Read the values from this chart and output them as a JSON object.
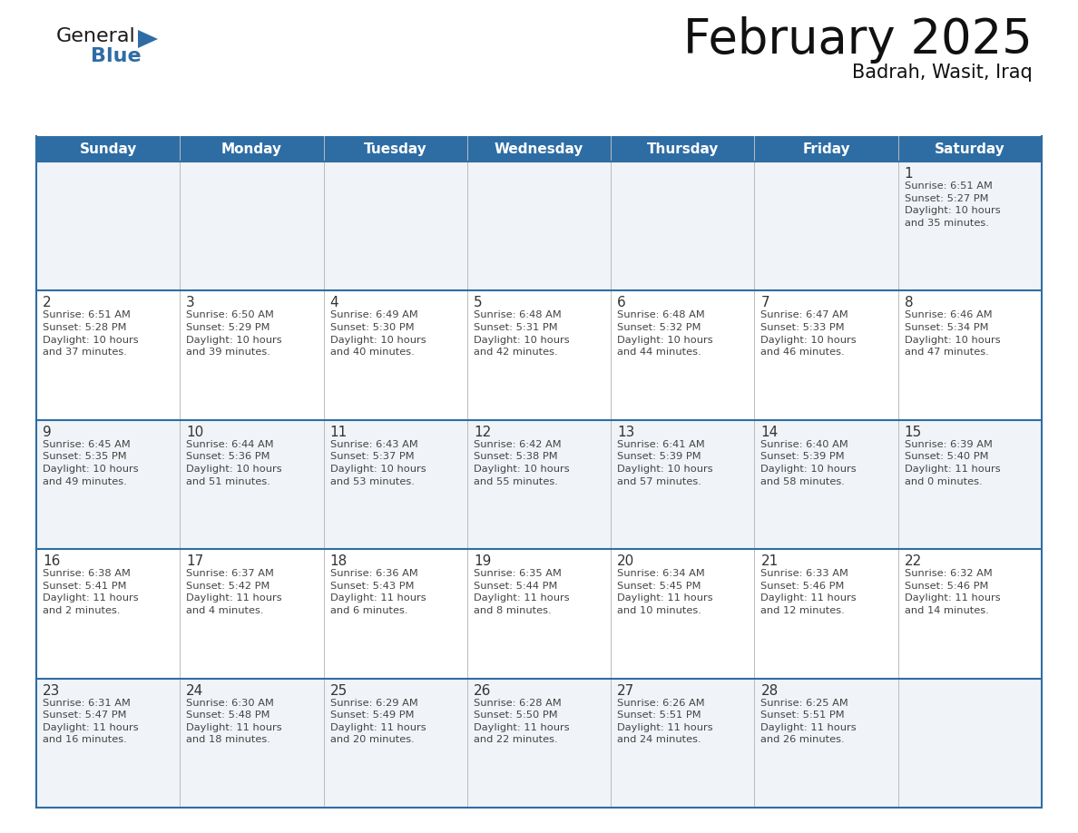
{
  "title": "February 2025",
  "subtitle": "Badrah, Wasit, Iraq",
  "header_bg": "#2E6DA4",
  "header_text_color": "#FFFFFF",
  "cell_bg_odd": "#FFFFFF",
  "cell_bg_even": "#F0F4F8",
  "border_color": "#2E6DA4",
  "grid_line_color": "#AAAAAA",
  "text_color": "#444444",
  "day_number_color": "#333333",
  "days_of_week": [
    "Sunday",
    "Monday",
    "Tuesday",
    "Wednesday",
    "Thursday",
    "Friday",
    "Saturday"
  ],
  "weeks": [
    [
      {
        "day": null,
        "info": null
      },
      {
        "day": null,
        "info": null
      },
      {
        "day": null,
        "info": null
      },
      {
        "day": null,
        "info": null
      },
      {
        "day": null,
        "info": null
      },
      {
        "day": null,
        "info": null
      },
      {
        "day": 1,
        "info": "Sunrise: 6:51 AM\nSunset: 5:27 PM\nDaylight: 10 hours\nand 35 minutes."
      }
    ],
    [
      {
        "day": 2,
        "info": "Sunrise: 6:51 AM\nSunset: 5:28 PM\nDaylight: 10 hours\nand 37 minutes."
      },
      {
        "day": 3,
        "info": "Sunrise: 6:50 AM\nSunset: 5:29 PM\nDaylight: 10 hours\nand 39 minutes."
      },
      {
        "day": 4,
        "info": "Sunrise: 6:49 AM\nSunset: 5:30 PM\nDaylight: 10 hours\nand 40 minutes."
      },
      {
        "day": 5,
        "info": "Sunrise: 6:48 AM\nSunset: 5:31 PM\nDaylight: 10 hours\nand 42 minutes."
      },
      {
        "day": 6,
        "info": "Sunrise: 6:48 AM\nSunset: 5:32 PM\nDaylight: 10 hours\nand 44 minutes."
      },
      {
        "day": 7,
        "info": "Sunrise: 6:47 AM\nSunset: 5:33 PM\nDaylight: 10 hours\nand 46 minutes."
      },
      {
        "day": 8,
        "info": "Sunrise: 6:46 AM\nSunset: 5:34 PM\nDaylight: 10 hours\nand 47 minutes."
      }
    ],
    [
      {
        "day": 9,
        "info": "Sunrise: 6:45 AM\nSunset: 5:35 PM\nDaylight: 10 hours\nand 49 minutes."
      },
      {
        "day": 10,
        "info": "Sunrise: 6:44 AM\nSunset: 5:36 PM\nDaylight: 10 hours\nand 51 minutes."
      },
      {
        "day": 11,
        "info": "Sunrise: 6:43 AM\nSunset: 5:37 PM\nDaylight: 10 hours\nand 53 minutes."
      },
      {
        "day": 12,
        "info": "Sunrise: 6:42 AM\nSunset: 5:38 PM\nDaylight: 10 hours\nand 55 minutes."
      },
      {
        "day": 13,
        "info": "Sunrise: 6:41 AM\nSunset: 5:39 PM\nDaylight: 10 hours\nand 57 minutes."
      },
      {
        "day": 14,
        "info": "Sunrise: 6:40 AM\nSunset: 5:39 PM\nDaylight: 10 hours\nand 58 minutes."
      },
      {
        "day": 15,
        "info": "Sunrise: 6:39 AM\nSunset: 5:40 PM\nDaylight: 11 hours\nand 0 minutes."
      }
    ],
    [
      {
        "day": 16,
        "info": "Sunrise: 6:38 AM\nSunset: 5:41 PM\nDaylight: 11 hours\nand 2 minutes."
      },
      {
        "day": 17,
        "info": "Sunrise: 6:37 AM\nSunset: 5:42 PM\nDaylight: 11 hours\nand 4 minutes."
      },
      {
        "day": 18,
        "info": "Sunrise: 6:36 AM\nSunset: 5:43 PM\nDaylight: 11 hours\nand 6 minutes."
      },
      {
        "day": 19,
        "info": "Sunrise: 6:35 AM\nSunset: 5:44 PM\nDaylight: 11 hours\nand 8 minutes."
      },
      {
        "day": 20,
        "info": "Sunrise: 6:34 AM\nSunset: 5:45 PM\nDaylight: 11 hours\nand 10 minutes."
      },
      {
        "day": 21,
        "info": "Sunrise: 6:33 AM\nSunset: 5:46 PM\nDaylight: 11 hours\nand 12 minutes."
      },
      {
        "day": 22,
        "info": "Sunrise: 6:32 AM\nSunset: 5:46 PM\nDaylight: 11 hours\nand 14 minutes."
      }
    ],
    [
      {
        "day": 23,
        "info": "Sunrise: 6:31 AM\nSunset: 5:47 PM\nDaylight: 11 hours\nand 16 minutes."
      },
      {
        "day": 24,
        "info": "Sunrise: 6:30 AM\nSunset: 5:48 PM\nDaylight: 11 hours\nand 18 minutes."
      },
      {
        "day": 25,
        "info": "Sunrise: 6:29 AM\nSunset: 5:49 PM\nDaylight: 11 hours\nand 20 minutes."
      },
      {
        "day": 26,
        "info": "Sunrise: 6:28 AM\nSunset: 5:50 PM\nDaylight: 11 hours\nand 22 minutes."
      },
      {
        "day": 27,
        "info": "Sunrise: 6:26 AM\nSunset: 5:51 PM\nDaylight: 11 hours\nand 24 minutes."
      },
      {
        "day": 28,
        "info": "Sunrise: 6:25 AM\nSunset: 5:51 PM\nDaylight: 11 hours\nand 26 minutes."
      },
      {
        "day": null,
        "info": null
      }
    ]
  ],
  "logo_general_color": "#1a1a1a",
  "logo_blue_color": "#2E6DA4",
  "title_fontsize": 38,
  "subtitle_fontsize": 15,
  "header_fontsize": 11,
  "day_num_fontsize": 11,
  "info_fontsize": 8.2
}
